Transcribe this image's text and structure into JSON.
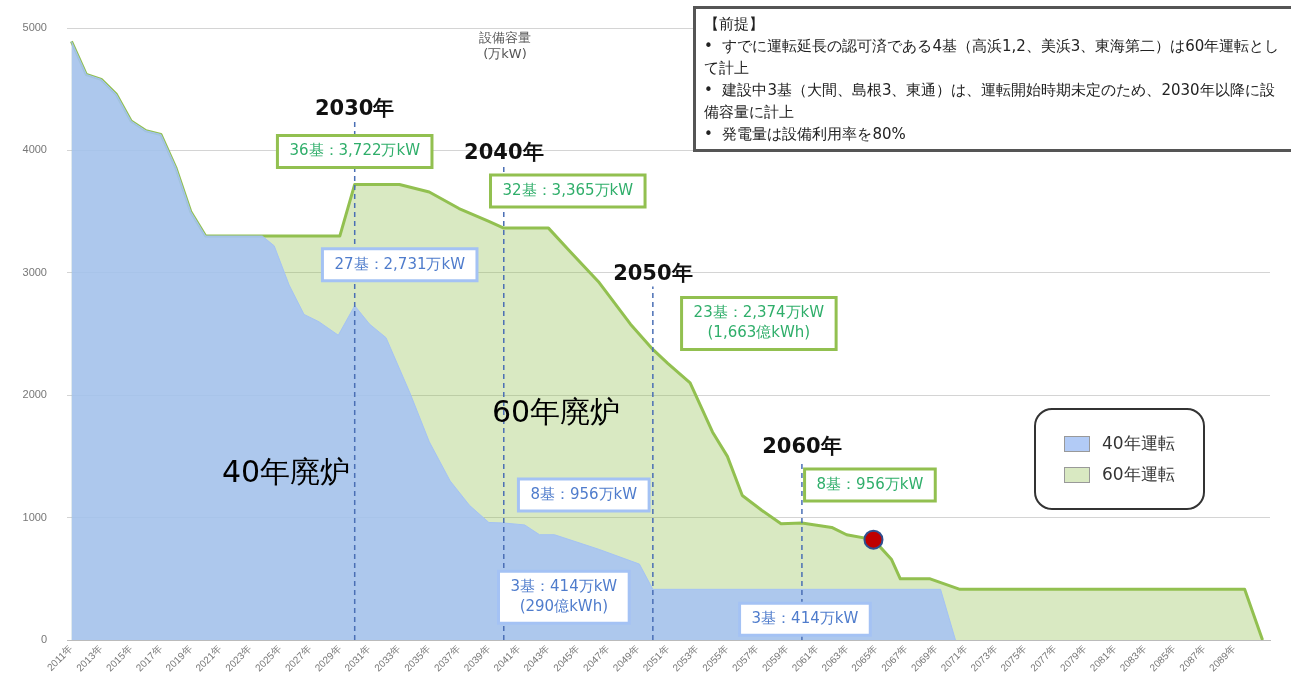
{
  "chart_data": {
    "type": "area",
    "ylabel": "設備容量\n(万kW)",
    "xlim": [
      2010.7,
      2091.4
    ],
    "xticks": [
      {
        "value": 2011,
        "label": "2011年"
      },
      {
        "value": 2013,
        "label": "2013年"
      },
      {
        "value": 2015,
        "label": "2015年"
      },
      {
        "value": 2017,
        "label": "2017年"
      },
      {
        "value": 2019,
        "label": "2019年"
      },
      {
        "value": 2021,
        "label": "2021年"
      },
      {
        "value": 2023,
        "label": "2023年"
      },
      {
        "value": 2025,
        "label": "2025年"
      },
      {
        "value": 2027,
        "label": "2027年"
      },
      {
        "value": 2029,
        "label": "2029年"
      },
      {
        "value": 2031,
        "label": "2031年"
      },
      {
        "value": 2033,
        "label": "2033年"
      },
      {
        "value": 2035,
        "label": "2035年"
      },
      {
        "value": 2037,
        "label": "2037年"
      },
      {
        "value": 2039,
        "label": "2039年"
      },
      {
        "value": 2041,
        "label": "2041年"
      },
      {
        "value": 2043,
        "label": "2043年"
      },
      {
        "value": 2045,
        "label": "2045年"
      },
      {
        "value": 2047,
        "label": "2047年"
      },
      {
        "value": 2049,
        "label": "2049年"
      },
      {
        "value": 2051,
        "label": "2051年"
      },
      {
        "value": 2053,
        "label": "2053年"
      },
      {
        "value": 2055,
        "label": "2055年"
      },
      {
        "value": 2057,
        "label": "2057年"
      },
      {
        "value": 2059,
        "label": "2059年"
      },
      {
        "value": 2061,
        "label": "2061年"
      },
      {
        "value": 2063,
        "label": "2063年"
      },
      {
        "value": 2065,
        "label": "2065年"
      },
      {
        "value": 2067,
        "label": "2067年"
      },
      {
        "value": 2069,
        "label": "2069年"
      },
      {
        "value": 2071,
        "label": "2071年"
      },
      {
        "value": 2073,
        "label": "2073年"
      },
      {
        "value": 2075,
        "label": "2075年"
      },
      {
        "value": 2077,
        "label": "2077年"
      },
      {
        "value": 2079,
        "label": "2079年"
      },
      {
        "value": 2081,
        "label": "2081年"
      },
      {
        "value": 2083,
        "label": "2083年"
      },
      {
        "value": 2085,
        "label": "2085年"
      },
      {
        "value": 2087,
        "label": "2087年"
      },
      {
        "value": 2089,
        "label": "2089年"
      }
    ],
    "ylim": [
      0,
      5000
    ],
    "yticks": [
      0,
      1000,
      2000,
      3000,
      4000,
      5000
    ],
    "grid": "y",
    "legend": "right",
    "series": [
      {
        "name": "40年運転",
        "color": "#a4c2f4",
        "x": [
          2011,
          2012,
          2013,
          2014,
          2015,
          2016,
          2017,
          2018,
          2019,
          2020,
          2023.8,
          2024.6,
          2025.6,
          2026.6,
          2027.6,
          2028.9,
          2030,
          2031,
          2032.1,
          2033.7,
          2035,
          2036.4,
          2037.7,
          2039,
          2040,
          2041.4,
          2042.4,
          2043.4,
          2046.4,
          2049.1,
          2050,
          2069.3,
          2070.3
        ],
        "values": [
          4890,
          4620,
          4580,
          4460,
          4240,
          4160,
          4130,
          3860,
          3500,
          3300,
          3300,
          3220,
          2900,
          2660,
          2600,
          2490,
          2731,
          2580,
          2470,
          2020,
          1620,
          1300,
          1100,
          960,
          956,
          940,
          860,
          860,
          740,
          620,
          414,
          414,
          0
        ]
      },
      {
        "name": "60年運転",
        "color": "#92c050",
        "x": [
          2011,
          2012,
          2013,
          2014,
          2015,
          2016,
          2017,
          2018,
          2019,
          2020,
          2029,
          2030,
          2033,
          2035,
          2037,
          2039,
          2040,
          2043,
          2044.4,
          2046.4,
          2048.5,
          2050,
          2051,
          2052.5,
          2054,
          2055,
          2056,
          2057.3,
          2058.6,
          2060,
          2062,
          2063,
          2064.8,
          2066,
          2066.6,
          2068.6,
          2070.6,
          2089.7,
          2090.9
        ],
        "values": [
          4890,
          4620,
          4580,
          4460,
          4240,
          4160,
          4130,
          3860,
          3500,
          3300,
          3300,
          3722,
          3722,
          3660,
          3525,
          3420,
          3365,
          3365,
          3180,
          2920,
          2580,
          2374,
          2260,
          2100,
          1700,
          1500,
          1180,
          1060,
          950,
          956,
          920,
          860,
          820,
          660,
          500,
          500,
          414,
          414,
          0
        ]
      },
      {
        "type": "scatter",
        "color": "#c00000",
        "x": [
          2064.8
        ],
        "values": [
          820
        ]
      }
    ],
    "ref_lines": [
      {
        "axis": "x",
        "value": 2030,
        "label": "2030年",
        "color": "#4a6fb5",
        "line_style": "dashed"
      },
      {
        "axis": "x",
        "value": 2040,
        "label": "2040年",
        "color": "#4a6fb5",
        "line_style": "dashed"
      },
      {
        "axis": "x",
        "value": 2050,
        "label": "2050年",
        "color": "#4a6fb5",
        "line_style": "dashed"
      },
      {
        "axis": "x",
        "value": 2060,
        "label": "2060年",
        "color": "#4a6fb5",
        "line_style": "dashed"
      }
    ],
    "annotations": [
      {
        "text": "36基：3,722万kW",
        "x": 2030,
        "y": 3722
      },
      {
        "text": "27基：2,731万kW",
        "x": 2030,
        "y": 2731
      },
      {
        "text": "32基：3,365万kW",
        "x": 2040,
        "y": 3365
      },
      {
        "text": "23基：2,374万kW\n(1,663億kWh)",
        "x": 2050,
        "y": 2374
      },
      {
        "text": "8基：956万kW",
        "x": 2040,
        "y": 956
      },
      {
        "text": "3基：414万kW\n(290億kWh)",
        "x": 2050,
        "y": 414
      },
      {
        "text": "8基：956万kW",
        "x": 2060,
        "y": 956
      },
      {
        "text": "3基：414万kW",
        "x": 2060,
        "y": 414
      },
      "40年廃炉",
      "60年廃炉",
      "【前提】\n•  すでに運転延長の認可済である4基（高浜1,2、美浜3、東海第二）は60年運転として計上\n•  建設中3基（大間、島根3、東通）は、運転開始時期未定のため、2030年以降に設備容量に計上\n•  発電量は設備利用率を80%"
    ]
  }
}
